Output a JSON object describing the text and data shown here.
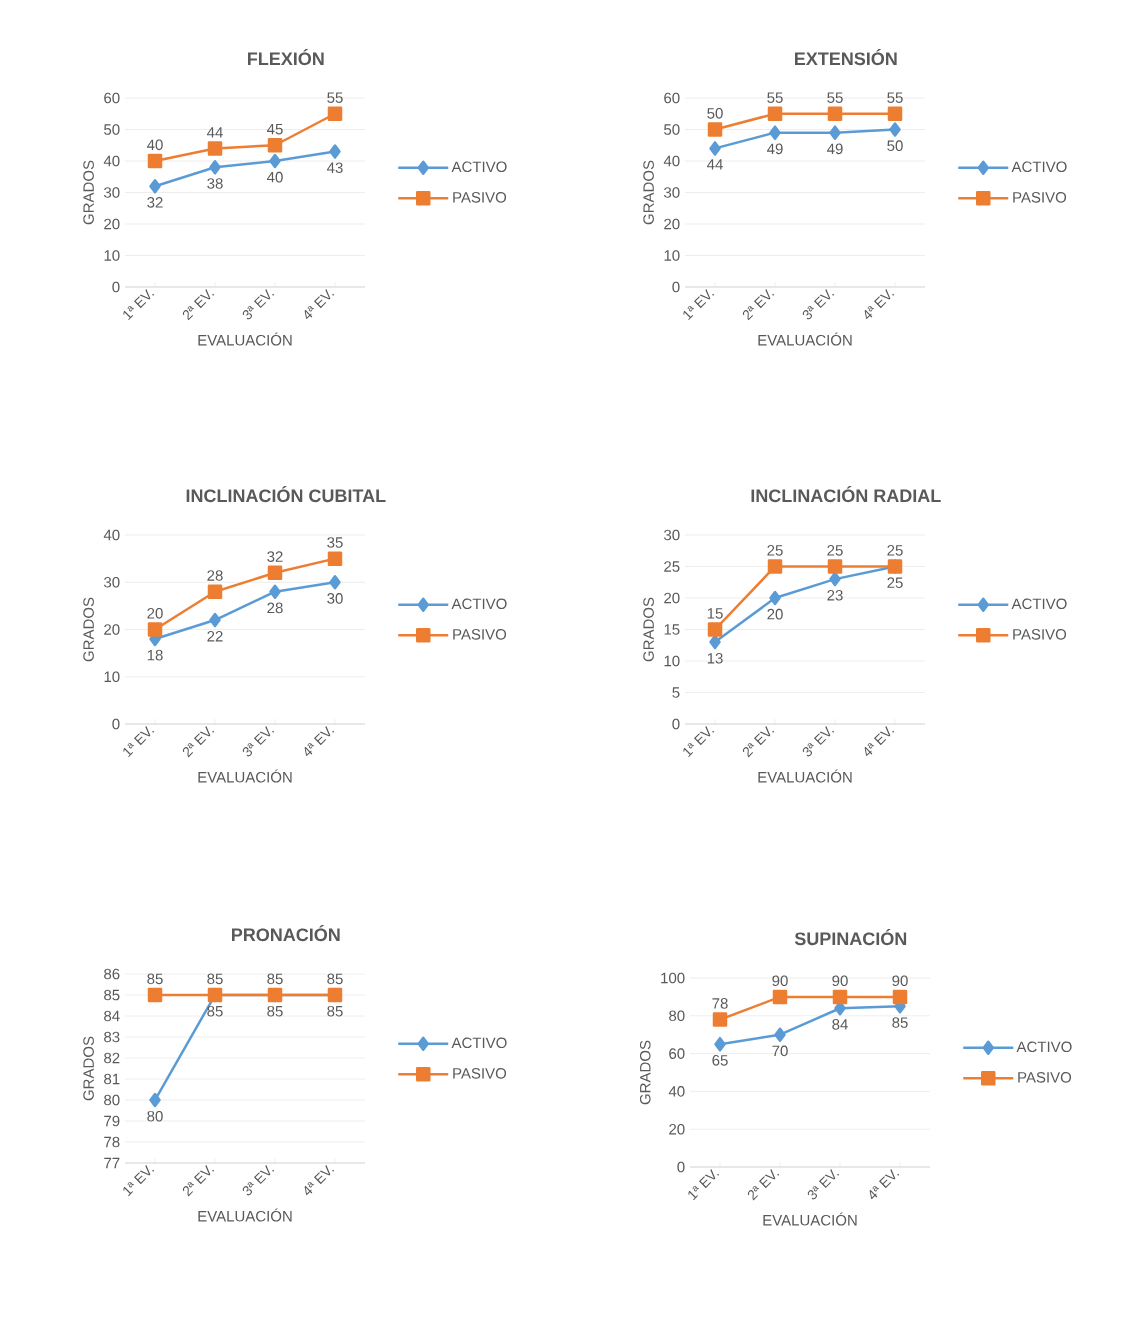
{
  "chart_data": [
    {
      "type": "line",
      "title": "FLEXIÓN",
      "xlabel": "EVALUACIÓN",
      "ylabel": "GRADOS",
      "categories": [
        "1ª EV.",
        "2ª EV.",
        "3ª EV.",
        "4ª EV."
      ],
      "ylim": [
        0,
        60
      ],
      "yticks": [
        0,
        10,
        20,
        30,
        40,
        50,
        60
      ],
      "grid": "y",
      "legend": "right",
      "data_labels": true,
      "line_style": "solid",
      "series": [
        {
          "name": "ACTIVO",
          "color": "#5b9bd5",
          "marker": "diamond",
          "values": [
            32,
            38,
            40,
            43
          ]
        },
        {
          "name": "PASIVO",
          "color": "#ed7d31",
          "marker": "square",
          "values": [
            40,
            44,
            45,
            55
          ]
        }
      ]
    },
    {
      "type": "line",
      "title": "EXTENSIÓN",
      "xlabel": "EVALUACIÓN",
      "ylabel": "GRADOS",
      "categories": [
        "1ª EV.",
        "2ª EV.",
        "3ª EV.",
        "4ª EV."
      ],
      "ylim": [
        0,
        60
      ],
      "yticks": [
        0,
        10,
        20,
        30,
        40,
        50,
        60
      ],
      "grid": "y",
      "legend": "right",
      "data_labels": true,
      "line_style": "solid",
      "series": [
        {
          "name": "ACTIVO",
          "color": "#5b9bd5",
          "marker": "diamond",
          "values": [
            44,
            49,
            49,
            50
          ]
        },
        {
          "name": "PASIVO",
          "color": "#ed7d31",
          "marker": "square",
          "values": [
            50,
            55,
            55,
            55
          ]
        }
      ]
    },
    {
      "type": "line",
      "title": "INCLINACIÓN CUBITAL",
      "xlabel": "EVALUACIÓN",
      "ylabel": "GRADOS",
      "categories": [
        "1ª EV.",
        "2ª EV.",
        "3ª EV.",
        "4ª EV."
      ],
      "ylim": [
        0,
        40
      ],
      "yticks": [
        0,
        10,
        20,
        30,
        40
      ],
      "grid": "y",
      "legend": "right",
      "data_labels": true,
      "line_style": "solid",
      "series": [
        {
          "name": "ACTIVO",
          "color": "#5b9bd5",
          "marker": "diamond",
          "values": [
            18,
            22,
            28,
            30
          ]
        },
        {
          "name": "PASIVO",
          "color": "#ed7d31",
          "marker": "square",
          "values": [
            20,
            28,
            32,
            35
          ]
        }
      ]
    },
    {
      "type": "line",
      "title": "INCLINACIÓN RADIAL",
      "xlabel": "EVALUACIÓN",
      "ylabel": "GRADOS",
      "categories": [
        "1ª EV.",
        "2ª EV.",
        "3ª EV.",
        "4ª EV."
      ],
      "ylim": [
        0,
        30
      ],
      "yticks": [
        0,
        5,
        10,
        15,
        20,
        25,
        30
      ],
      "grid": "y",
      "legend": "right",
      "data_labels": true,
      "line_style": "solid",
      "series": [
        {
          "name": "ACTIVO",
          "color": "#5b9bd5",
          "marker": "diamond",
          "values": [
            13,
            20,
            23,
            25
          ]
        },
        {
          "name": "PASIVO",
          "color": "#ed7d31",
          "marker": "square",
          "values": [
            15,
            25,
            25,
            25
          ]
        }
      ]
    },
    {
      "type": "line",
      "title": "PRONACIÓN",
      "xlabel": "EVALUACIÓN",
      "ylabel": "GRADOS",
      "categories": [
        "1ª EV.",
        "2ª EV.",
        "3ª EV.",
        "4ª EV."
      ],
      "ylim": [
        77,
        86
      ],
      "yticks": [
        77,
        78,
        79,
        80,
        81,
        82,
        83,
        84,
        85,
        86
      ],
      "grid": "y",
      "legend": "right",
      "data_labels": true,
      "line_style": "solid",
      "series": [
        {
          "name": "ACTIVO",
          "color": "#5b9bd5",
          "marker": "diamond",
          "values": [
            80,
            85,
            85,
            85
          ]
        },
        {
          "name": "PASIVO",
          "color": "#ed7d31",
          "marker": "square",
          "values": [
            85,
            85,
            85,
            85
          ]
        }
      ]
    },
    {
      "type": "line",
      "title": "SUPINACIÓN",
      "xlabel": "EVALUACIÓN",
      "ylabel": "GRADOS",
      "categories": [
        "1ª EV.",
        "2ª EV.",
        "3ª EV.",
        "4ª EV."
      ],
      "ylim": [
        0,
        100
      ],
      "yticks": [
        0,
        20,
        40,
        60,
        80,
        100
      ],
      "grid": "y",
      "legend": "right",
      "data_labels": true,
      "line_style": "solid",
      "series": [
        {
          "name": "ACTIVO",
          "color": "#5b9bd5",
          "marker": "diamond",
          "values": [
            65,
            70,
            84,
            85
          ]
        },
        {
          "name": "PASIVO",
          "color": "#ed7d31",
          "marker": "square",
          "values": [
            78,
            90,
            90,
            90
          ]
        }
      ]
    }
  ]
}
